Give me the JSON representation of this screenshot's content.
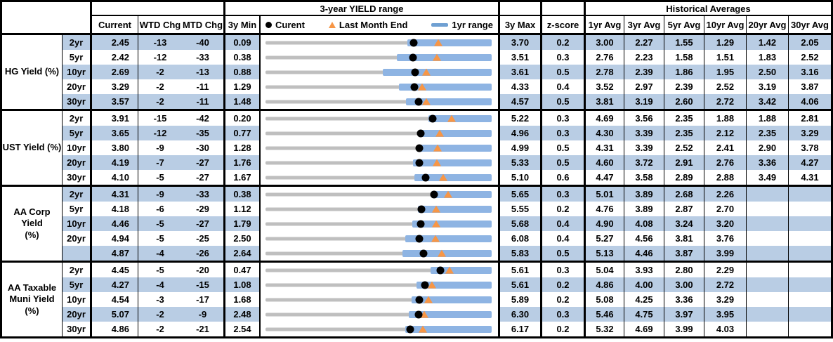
{
  "colors": {
    "stripe": "#B9CDE4",
    "bar_1yr": "#8EB4E3",
    "track_3yr": "#BFBFBF",
    "triangle": "#F79646",
    "dot": "#000000",
    "legend_dash": "#6FA0D2",
    "border": "#000000"
  },
  "header": {
    "range_title": "3-year YIELD range",
    "historical_title": "Historical Averages",
    "columns": {
      "current": "Current",
      "wtd": "WTD Chg",
      "mtd": "MTD Chg",
      "min": "3y Min",
      "max": "3y Max",
      "zscore": "z-score"
    },
    "avg_columns": [
      "1yr Avg",
      "3yr Avg",
      "5yr Avg",
      "10yr Avg",
      "20yr Avg",
      "30yr Avg"
    ],
    "legend": {
      "current": "Curent",
      "last_month_end": "Last Month End",
      "range": "1yr range"
    }
  },
  "chart_data": {
    "type": "table",
    "title": "3-year YIELD range",
    "legend": [
      "Curent",
      "Last Month End",
      "1yr range"
    ],
    "sections": [
      {
        "label": "HG Yield (%)",
        "rows": [
          {
            "tenor": "2yr",
            "current": "2.45",
            "wtd_chg": "-13",
            "mtd_chg": "-40",
            "min_3y": "0.09",
            "max_3y": "3.70",
            "z_score": "0.2",
            "avgs": [
              "3.00",
              "2.27",
              "1.55",
              "1.29",
              "1.42",
              "2.05"
            ],
            "range": {
              "min": 0.09,
              "max": 3.7,
              "current": 2.45,
              "last_month_end": 2.85,
              "bar_1yr": [
                2.36,
                3.7
              ]
            }
          },
          {
            "tenor": "5yr",
            "current": "2.42",
            "wtd_chg": "-12",
            "mtd_chg": "-33",
            "min_3y": "0.38",
            "max_3y": "3.51",
            "z_score": "0.3",
            "avgs": [
              "2.76",
              "2.23",
              "1.58",
              "1.51",
              "1.83",
              "2.52"
            ],
            "range": {
              "min": 0.38,
              "max": 3.51,
              "current": 2.42,
              "last_month_end": 2.75,
              "bar_1yr": [
                2.2,
                3.51
              ]
            }
          },
          {
            "tenor": "10yr",
            "current": "2.69",
            "wtd_chg": "-2",
            "mtd_chg": "-13",
            "min_3y": "0.88",
            "max_3y": "3.61",
            "z_score": "0.5",
            "avgs": [
              "2.78",
              "2.39",
              "1.86",
              "1.95",
              "2.50",
              "3.16"
            ],
            "range": {
              "min": 0.88,
              "max": 3.61,
              "current": 2.69,
              "last_month_end": 2.82,
              "bar_1yr": [
                2.3,
                3.61
              ]
            }
          },
          {
            "tenor": "20yr",
            "current": "3.29",
            "wtd_chg": "-2",
            "mtd_chg": "-11",
            "min_3y": "1.29",
            "max_3y": "4.33",
            "z_score": "0.4",
            "avgs": [
              "3.52",
              "2.97",
              "2.39",
              "2.52",
              "3.19",
              "3.87"
            ],
            "range": {
              "min": 1.29,
              "max": 4.33,
              "current": 3.29,
              "last_month_end": 3.4,
              "bar_1yr": [
                3.08,
                4.33
              ]
            }
          },
          {
            "tenor": "30yr",
            "current": "3.57",
            "wtd_chg": "-2",
            "mtd_chg": "-11",
            "min_3y": "1.48",
            "max_3y": "4.57",
            "z_score": "0.5",
            "avgs": [
              "3.81",
              "3.19",
              "2.60",
              "2.72",
              "3.42",
              "4.06"
            ],
            "range": {
              "min": 1.48,
              "max": 4.57,
              "current": 3.57,
              "last_month_end": 3.68,
              "bar_1yr": [
                3.4,
                4.57
              ]
            }
          }
        ]
      },
      {
        "label": "UST Yield (%)",
        "rows": [
          {
            "tenor": "2yr",
            "current": "3.91",
            "wtd_chg": "-15",
            "mtd_chg": "-42",
            "min_3y": "0.20",
            "max_3y": "5.22",
            "z_score": "0.3",
            "avgs": [
              "4.69",
              "3.56",
              "2.35",
              "1.88",
              "1.88",
              "2.81"
            ],
            "range": {
              "min": 0.2,
              "max": 5.22,
              "current": 3.91,
              "last_month_end": 4.33,
              "bar_1yr": [
                3.81,
                5.22
              ]
            }
          },
          {
            "tenor": "5yr",
            "current": "3.65",
            "wtd_chg": "-12",
            "mtd_chg": "-35",
            "min_3y": "0.77",
            "max_3y": "4.96",
            "z_score": "0.3",
            "avgs": [
              "4.30",
              "3.39",
              "2.35",
              "2.12",
              "2.35",
              "3.29"
            ],
            "range": {
              "min": 0.77,
              "max": 4.96,
              "current": 3.65,
              "last_month_end": 4.0,
              "bar_1yr": [
                3.64,
                4.96
              ]
            }
          },
          {
            "tenor": "10yr",
            "current": "3.80",
            "wtd_chg": "-9",
            "mtd_chg": "-30",
            "min_3y": "1.28",
            "max_3y": "4.99",
            "z_score": "0.5",
            "avgs": [
              "4.31",
              "3.39",
              "2.52",
              "2.41",
              "2.90",
              "3.78"
            ],
            "range": {
              "min": 1.28,
              "max": 4.99,
              "current": 3.8,
              "last_month_end": 4.1,
              "bar_1yr": [
                3.79,
                4.99
              ]
            }
          },
          {
            "tenor": "20yr",
            "current": "4.19",
            "wtd_chg": "-7",
            "mtd_chg": "-27",
            "min_3y": "1.76",
            "max_3y": "5.33",
            "z_score": "0.5",
            "avgs": [
              "4.60",
              "3.72",
              "2.91",
              "2.76",
              "3.36",
              "4.27"
            ],
            "range": {
              "min": 1.76,
              "max": 5.33,
              "current": 4.19,
              "last_month_end": 4.46,
              "bar_1yr": [
                4.09,
                5.33
              ]
            }
          },
          {
            "tenor": "30yr",
            "current": "4.10",
            "wtd_chg": "-5",
            "mtd_chg": "-27",
            "min_3y": "1.67",
            "max_3y": "5.10",
            "z_score": "0.6",
            "avgs": [
              "4.47",
              "3.58",
              "2.89",
              "2.88",
              "3.49",
              "4.31"
            ],
            "range": {
              "min": 1.67,
              "max": 5.1,
              "current": 4.1,
              "last_month_end": 4.37,
              "bar_1yr": [
                3.93,
                5.1
              ]
            }
          }
        ]
      },
      {
        "label": "AA Corp Yield\n(%)",
        "rows": [
          {
            "tenor": "2yr",
            "current": "4.31",
            "wtd_chg": "-9",
            "mtd_chg": "-33",
            "min_3y": "0.38",
            "max_3y": "5.65",
            "z_score": "0.3",
            "avgs": [
              "5.01",
              "3.89",
              "2.68",
              "2.26",
              "",
              ""
            ],
            "range": {
              "min": 0.38,
              "max": 5.65,
              "current": 4.31,
              "last_month_end": 4.64,
              "bar_1yr": [
                4.25,
                5.65
              ]
            }
          },
          {
            "tenor": "5yr",
            "current": "4.18",
            "wtd_chg": "-6",
            "mtd_chg": "-29",
            "min_3y": "1.12",
            "max_3y": "5.55",
            "z_score": "0.2",
            "avgs": [
              "4.76",
              "3.89",
              "2.87",
              "2.70",
              "",
              ""
            ],
            "range": {
              "min": 1.12,
              "max": 5.55,
              "current": 4.18,
              "last_month_end": 4.47,
              "bar_1yr": [
                4.11,
                5.55
              ]
            }
          },
          {
            "tenor": "10yr",
            "current": "4.46",
            "wtd_chg": "-5",
            "mtd_chg": "-27",
            "min_3y": "1.79",
            "max_3y": "5.68",
            "z_score": "0.4",
            "avgs": [
              "4.90",
              "4.08",
              "3.24",
              "3.20",
              "",
              ""
            ],
            "range": {
              "min": 1.79,
              "max": 5.68,
              "current": 4.46,
              "last_month_end": 4.73,
              "bar_1yr": [
                4.31,
                5.68
              ]
            }
          },
          {
            "tenor": "20yr",
            "current": "4.94",
            "wtd_chg": "-5",
            "mtd_chg": "-25",
            "min_3y": "2.50",
            "max_3y": "6.08",
            "z_score": "0.4",
            "avgs": [
              "5.27",
              "4.56",
              "3.81",
              "3.76",
              "",
              ""
            ],
            "range": {
              "min": 2.5,
              "max": 6.08,
              "current": 4.94,
              "last_month_end": 5.19,
              "bar_1yr": [
                4.71,
                6.08
              ]
            }
          },
          {
            "tenor": "",
            "current": "4.87",
            "wtd_chg": "-4",
            "mtd_chg": "-26",
            "min_3y": "2.64",
            "max_3y": "5.83",
            "z_score": "0.5",
            "avgs": [
              "5.13",
              "4.46",
              "3.87",
              "3.99",
              "",
              ""
            ],
            "range": {
              "min": 2.64,
              "max": 5.83,
              "current": 4.87,
              "last_month_end": 5.13,
              "bar_1yr": [
                4.57,
                5.83
              ]
            }
          }
        ]
      },
      {
        "label": "AA Taxable\nMuni Yield\n(%)",
        "rows": [
          {
            "tenor": "2yr",
            "current": "4.45",
            "wtd_chg": "-5",
            "mtd_chg": "-20",
            "min_3y": "0.47",
            "max_3y": "5.61",
            "z_score": "0.3",
            "avgs": [
              "5.04",
              "3.93",
              "2.80",
              "2.29",
              "",
              ""
            ],
            "range": {
              "min": 0.47,
              "max": 5.61,
              "current": 4.45,
              "last_month_end": 4.65,
              "bar_1yr": [
                4.22,
                5.61
              ]
            }
          },
          {
            "tenor": "5yr",
            "current": "4.27",
            "wtd_chg": "-4",
            "mtd_chg": "-15",
            "min_3y": "1.08",
            "max_3y": "5.61",
            "z_score": "0.2",
            "avgs": [
              "4.86",
              "4.00",
              "3.00",
              "2.72",
              "",
              ""
            ],
            "range": {
              "min": 1.08,
              "max": 5.61,
              "current": 4.27,
              "last_month_end": 4.42,
              "bar_1yr": [
                4.1,
                5.61
              ]
            }
          },
          {
            "tenor": "10yr",
            "current": "4.54",
            "wtd_chg": "-3",
            "mtd_chg": "-17",
            "min_3y": "1.68",
            "max_3y": "5.89",
            "z_score": "0.2",
            "avgs": [
              "5.08",
              "4.25",
              "3.36",
              "3.29",
              "",
              ""
            ],
            "range": {
              "min": 1.68,
              "max": 5.89,
              "current": 4.54,
              "last_month_end": 4.71,
              "bar_1yr": [
                4.4,
                5.89
              ]
            }
          },
          {
            "tenor": "20yr",
            "current": "5.07",
            "wtd_chg": "-2",
            "mtd_chg": "-9",
            "min_3y": "2.48",
            "max_3y": "6.30",
            "z_score": "0.3",
            "avgs": [
              "5.46",
              "4.75",
              "3.97",
              "3.95",
              "",
              ""
            ],
            "range": {
              "min": 2.48,
              "max": 6.3,
              "current": 5.07,
              "last_month_end": 5.16,
              "bar_1yr": [
                4.9,
                6.3
              ]
            }
          },
          {
            "tenor": "30yr",
            "current": "4.86",
            "wtd_chg": "-2",
            "mtd_chg": "-21",
            "min_3y": "2.54",
            "max_3y": "6.17",
            "z_score": "0.2",
            "avgs": [
              "5.32",
              "4.69",
              "3.99",
              "4.03",
              "",
              ""
            ],
            "range": {
              "min": 2.54,
              "max": 6.17,
              "current": 4.86,
              "last_month_end": 5.07,
              "bar_1yr": [
                4.78,
                6.17
              ]
            }
          }
        ]
      }
    ]
  }
}
